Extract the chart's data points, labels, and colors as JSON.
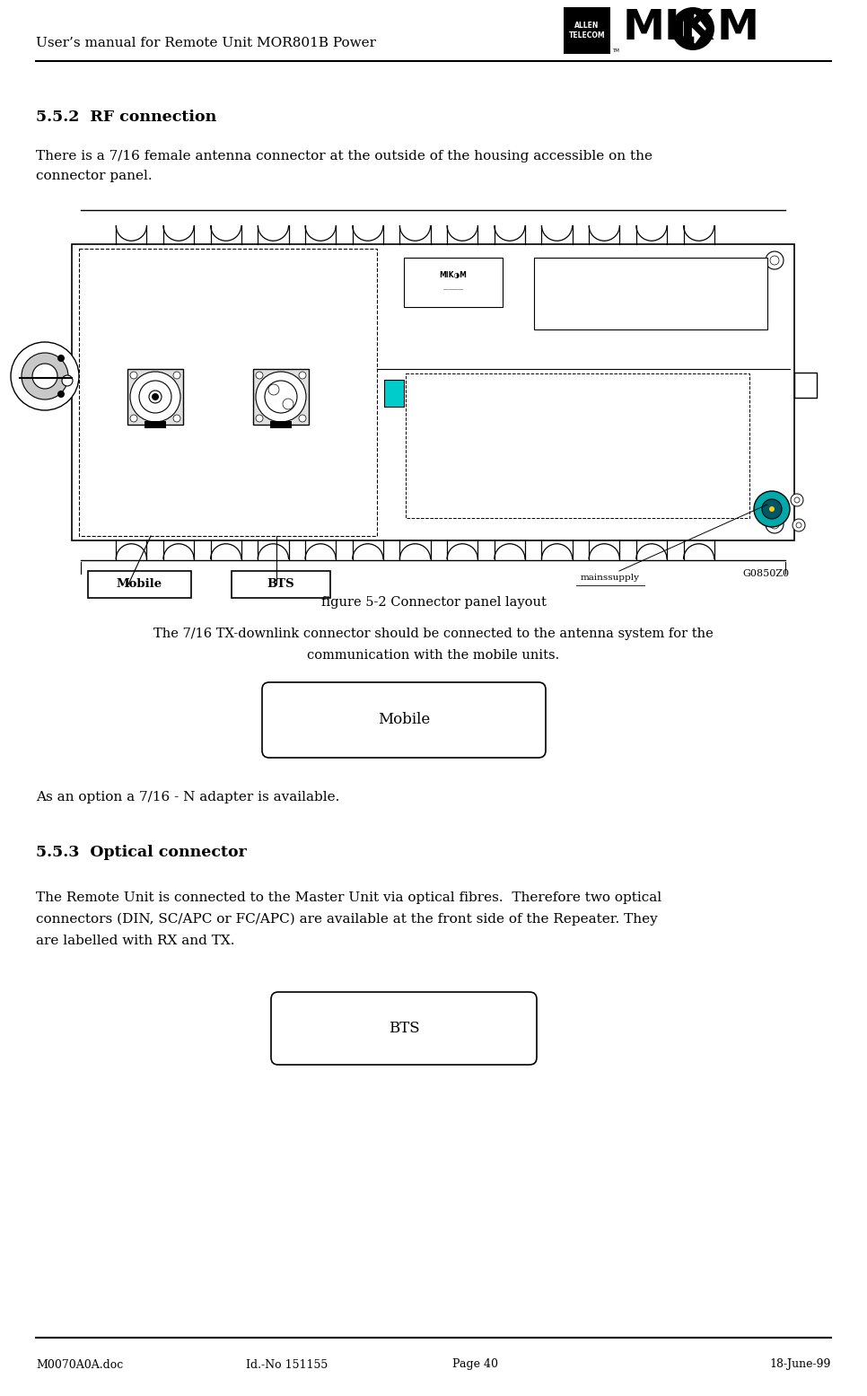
{
  "page_width": 9.66,
  "page_height": 15.55,
  "bg_color": "#ffffff",
  "header_title": "User’s manual for Remote Unit MOR801B Power",
  "section_552_title": "5.5.2  RF connection",
  "figure_caption": "figure 5-2 Connector panel layout",
  "mobile_box_label": "Mobile",
  "option_text": "As an option a 7/16 - N adapter is available.",
  "section_553_title": "5.5.3  Optical connector",
  "bts_box_label": "BTS",
  "footer_left": "M0070A0A.doc",
  "footer_center_left": "Id.-No 151155",
  "footer_center_right": "Page 40",
  "footer_right": "18-June-99"
}
